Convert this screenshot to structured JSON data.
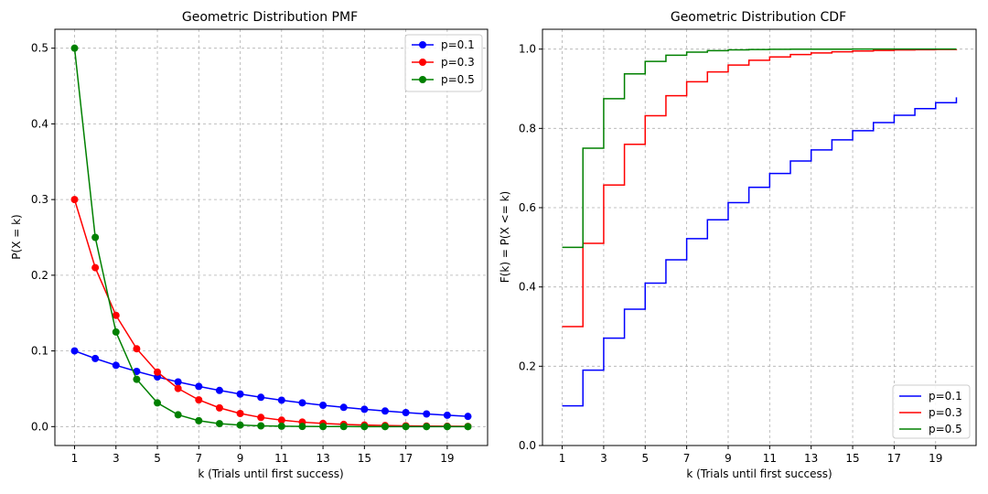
{
  "colors": {
    "p01": "#0000ff",
    "p03": "#ff0000",
    "p05": "#008000"
  },
  "chart_data": [
    {
      "type": "line",
      "title": "Geometric Distribution PMF",
      "xlabel": "k (Trials until first success)",
      "ylabel": "P(X = k)",
      "xlim": [
        0.05,
        20.95
      ],
      "ylim": [
        -0.025,
        0.525
      ],
      "xticks": [
        1,
        3,
        5,
        7,
        9,
        11,
        13,
        15,
        17,
        19
      ],
      "yticks": [
        0.0,
        0.1,
        0.2,
        0.3,
        0.4,
        0.5
      ],
      "ytick_labels": [
        "0.0",
        "0.1",
        "0.2",
        "0.3",
        "0.4",
        "0.5"
      ],
      "grid": true,
      "legend_position": "top-right",
      "x": [
        1,
        2,
        3,
        4,
        5,
        6,
        7,
        8,
        9,
        10,
        11,
        12,
        13,
        14,
        15,
        16,
        17,
        18,
        19,
        20
      ],
      "series": [
        {
          "name": "p=0.1",
          "color": "#0000ff",
          "values": [
            0.1,
            0.09,
            0.081,
            0.0729,
            0.0656,
            0.059,
            0.0531,
            0.0478,
            0.043,
            0.0387,
            0.0349,
            0.0314,
            0.0282,
            0.0254,
            0.0229,
            0.0206,
            0.0185,
            0.0167,
            0.015,
            0.0135
          ]
        },
        {
          "name": "p=0.3",
          "color": "#ff0000",
          "values": [
            0.3,
            0.21,
            0.147,
            0.1029,
            0.072,
            0.0504,
            0.0353,
            0.0247,
            0.0173,
            0.0121,
            0.0085,
            0.0059,
            0.0042,
            0.0029,
            0.002,
            0.0014,
            0.001,
            0.0007,
            0.0005,
            0.0003
          ]
        },
        {
          "name": "p=0.5",
          "color": "#008000",
          "values": [
            0.5,
            0.25,
            0.125,
            0.0625,
            0.0313,
            0.0156,
            0.0078,
            0.0039,
            0.002,
            0.001,
            0.0005,
            0.0002,
            0.0001,
            0.0001,
            0.0,
            0.0,
            0.0,
            0.0,
            0.0,
            0.0
          ]
        }
      ]
    },
    {
      "type": "line",
      "step": "post",
      "title": "Geometric Distribution CDF",
      "xlabel": "k (Trials until first success)",
      "ylabel": "F(k) = P(X <= k)",
      "xlim": [
        0.05,
        20.95
      ],
      "ylim": [
        0.0,
        1.05
      ],
      "xticks": [
        1,
        3,
        5,
        7,
        9,
        11,
        13,
        15,
        17,
        19
      ],
      "yticks": [
        0.0,
        0.2,
        0.4,
        0.6,
        0.8,
        1.0
      ],
      "ytick_labels": [
        "0.0",
        "0.2",
        "0.4",
        "0.6",
        "0.8",
        "1.0"
      ],
      "grid": true,
      "legend_position": "bottom-right",
      "x": [
        1,
        2,
        3,
        4,
        5,
        6,
        7,
        8,
        9,
        10,
        11,
        12,
        13,
        14,
        15,
        16,
        17,
        18,
        19,
        20
      ],
      "series": [
        {
          "name": "p=0.1",
          "color": "#0000ff",
          "values": [
            0.1,
            0.19,
            0.271,
            0.3439,
            0.4095,
            0.4686,
            0.5217,
            0.5695,
            0.6126,
            0.6513,
            0.6862,
            0.7176,
            0.7458,
            0.7712,
            0.7941,
            0.8147,
            0.8332,
            0.8499,
            0.8649,
            0.8784
          ]
        },
        {
          "name": "p=0.3",
          "color": "#ff0000",
          "values": [
            0.3,
            0.51,
            0.657,
            0.7599,
            0.8319,
            0.8824,
            0.9176,
            0.9424,
            0.9596,
            0.9718,
            0.9802,
            0.9862,
            0.9903,
            0.9932,
            0.9953,
            0.9967,
            0.9977,
            0.9984,
            0.9989,
            0.9992
          ]
        },
        {
          "name": "p=0.5",
          "color": "#008000",
          "values": [
            0.5,
            0.75,
            0.875,
            0.9375,
            0.9688,
            0.9844,
            0.9922,
            0.9961,
            0.998,
            0.999,
            0.9995,
            0.9998,
            0.9999,
            0.9999,
            1.0,
            1.0,
            1.0,
            1.0,
            1.0,
            1.0
          ]
        }
      ]
    }
  ]
}
